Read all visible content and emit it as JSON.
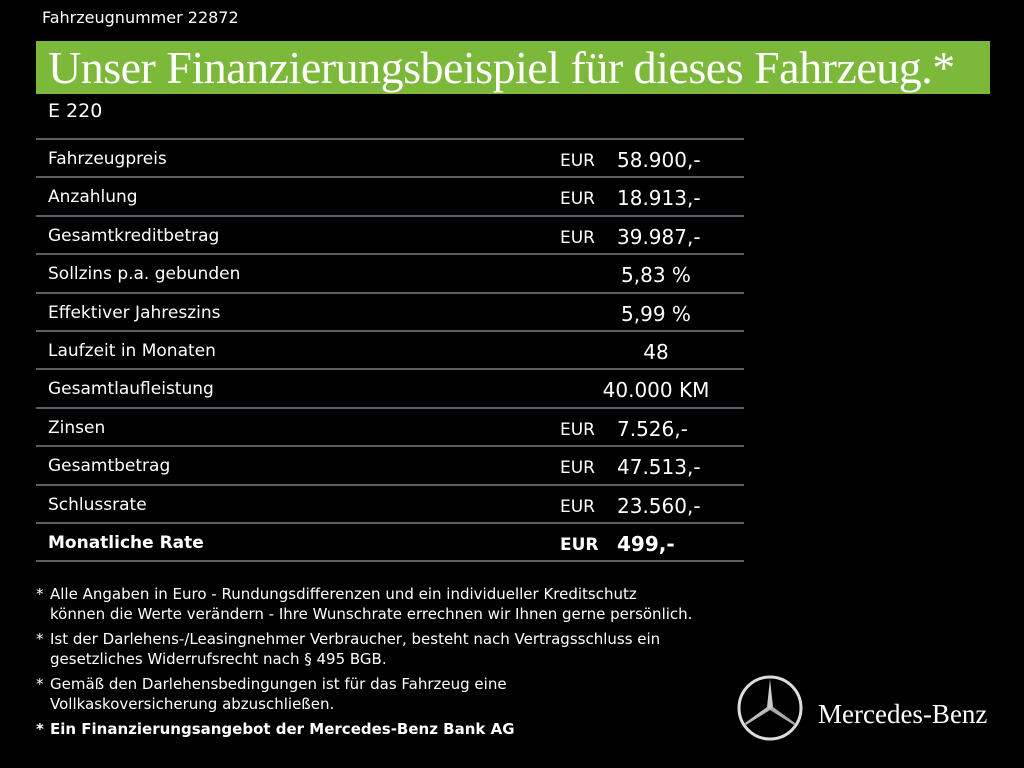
{
  "header": {
    "vehicle_number": "Fahrzeugnummer 22872",
    "title": "Unser Finanzierungsbeispiel für dieses Fahrzeug.*",
    "model": "E 220"
  },
  "table": {
    "rows": [
      {
        "label": "Fahrzeugpreis",
        "currency": "EUR",
        "value": "58.900,-"
      },
      {
        "label": "Anzahlung",
        "currency": "EUR",
        "value": "18.913,-"
      },
      {
        "label": "Gesamtkreditbetrag",
        "currency": "EUR",
        "value": "39.987,-"
      },
      {
        "label": "Sollzins p.a. gebunden",
        "value": "5,83 %"
      },
      {
        "label": "Effektiver Jahreszins",
        "value": "5,99 %"
      },
      {
        "label": "Laufzeit in Monaten",
        "value": "48"
      },
      {
        "label": "Gesamtlaufleistung",
        "value": "40.000 KM"
      },
      {
        "label": "Zinsen",
        "currency": "EUR",
        "value": "7.526,-"
      },
      {
        "label": "Gesamtbetrag",
        "currency": "EUR",
        "value": "47.513,-"
      },
      {
        "label": "Schlussrate",
        "currency": "EUR",
        "value": "23.560,-"
      },
      {
        "label": "Monatliche Rate",
        "currency": "EUR",
        "value": "499,-"
      }
    ]
  },
  "footnotes": [
    {
      "marker": "*",
      "lines": [
        "Alle Angaben in Euro - Rundungsdifferenzen und ein individueller Kreditschutz",
        "können die Werte verändern - Ihre Wunschrate errechnen wir Ihnen gerne persönlich."
      ]
    },
    {
      "marker": "*",
      "lines": [
        "Ist der Darlehens-/Leasingnehmer Verbraucher, besteht nach Vertragsschluss ein",
        "gesetzliches  Widerrufsrecht nach § 495 BGB."
      ]
    },
    {
      "marker": "*",
      "lines": [
        "Gemäß den Darlehensbedingungen ist für das Fahrzeug eine",
        "Vollkaskoversicherung abzuschließen."
      ]
    },
    {
      "marker": "*",
      "lines": [
        "Ein Finanzierungsangebot der Mercedes-Benz Bank AG"
      ]
    }
  ],
  "brand": "Mercedes-Benz"
}
